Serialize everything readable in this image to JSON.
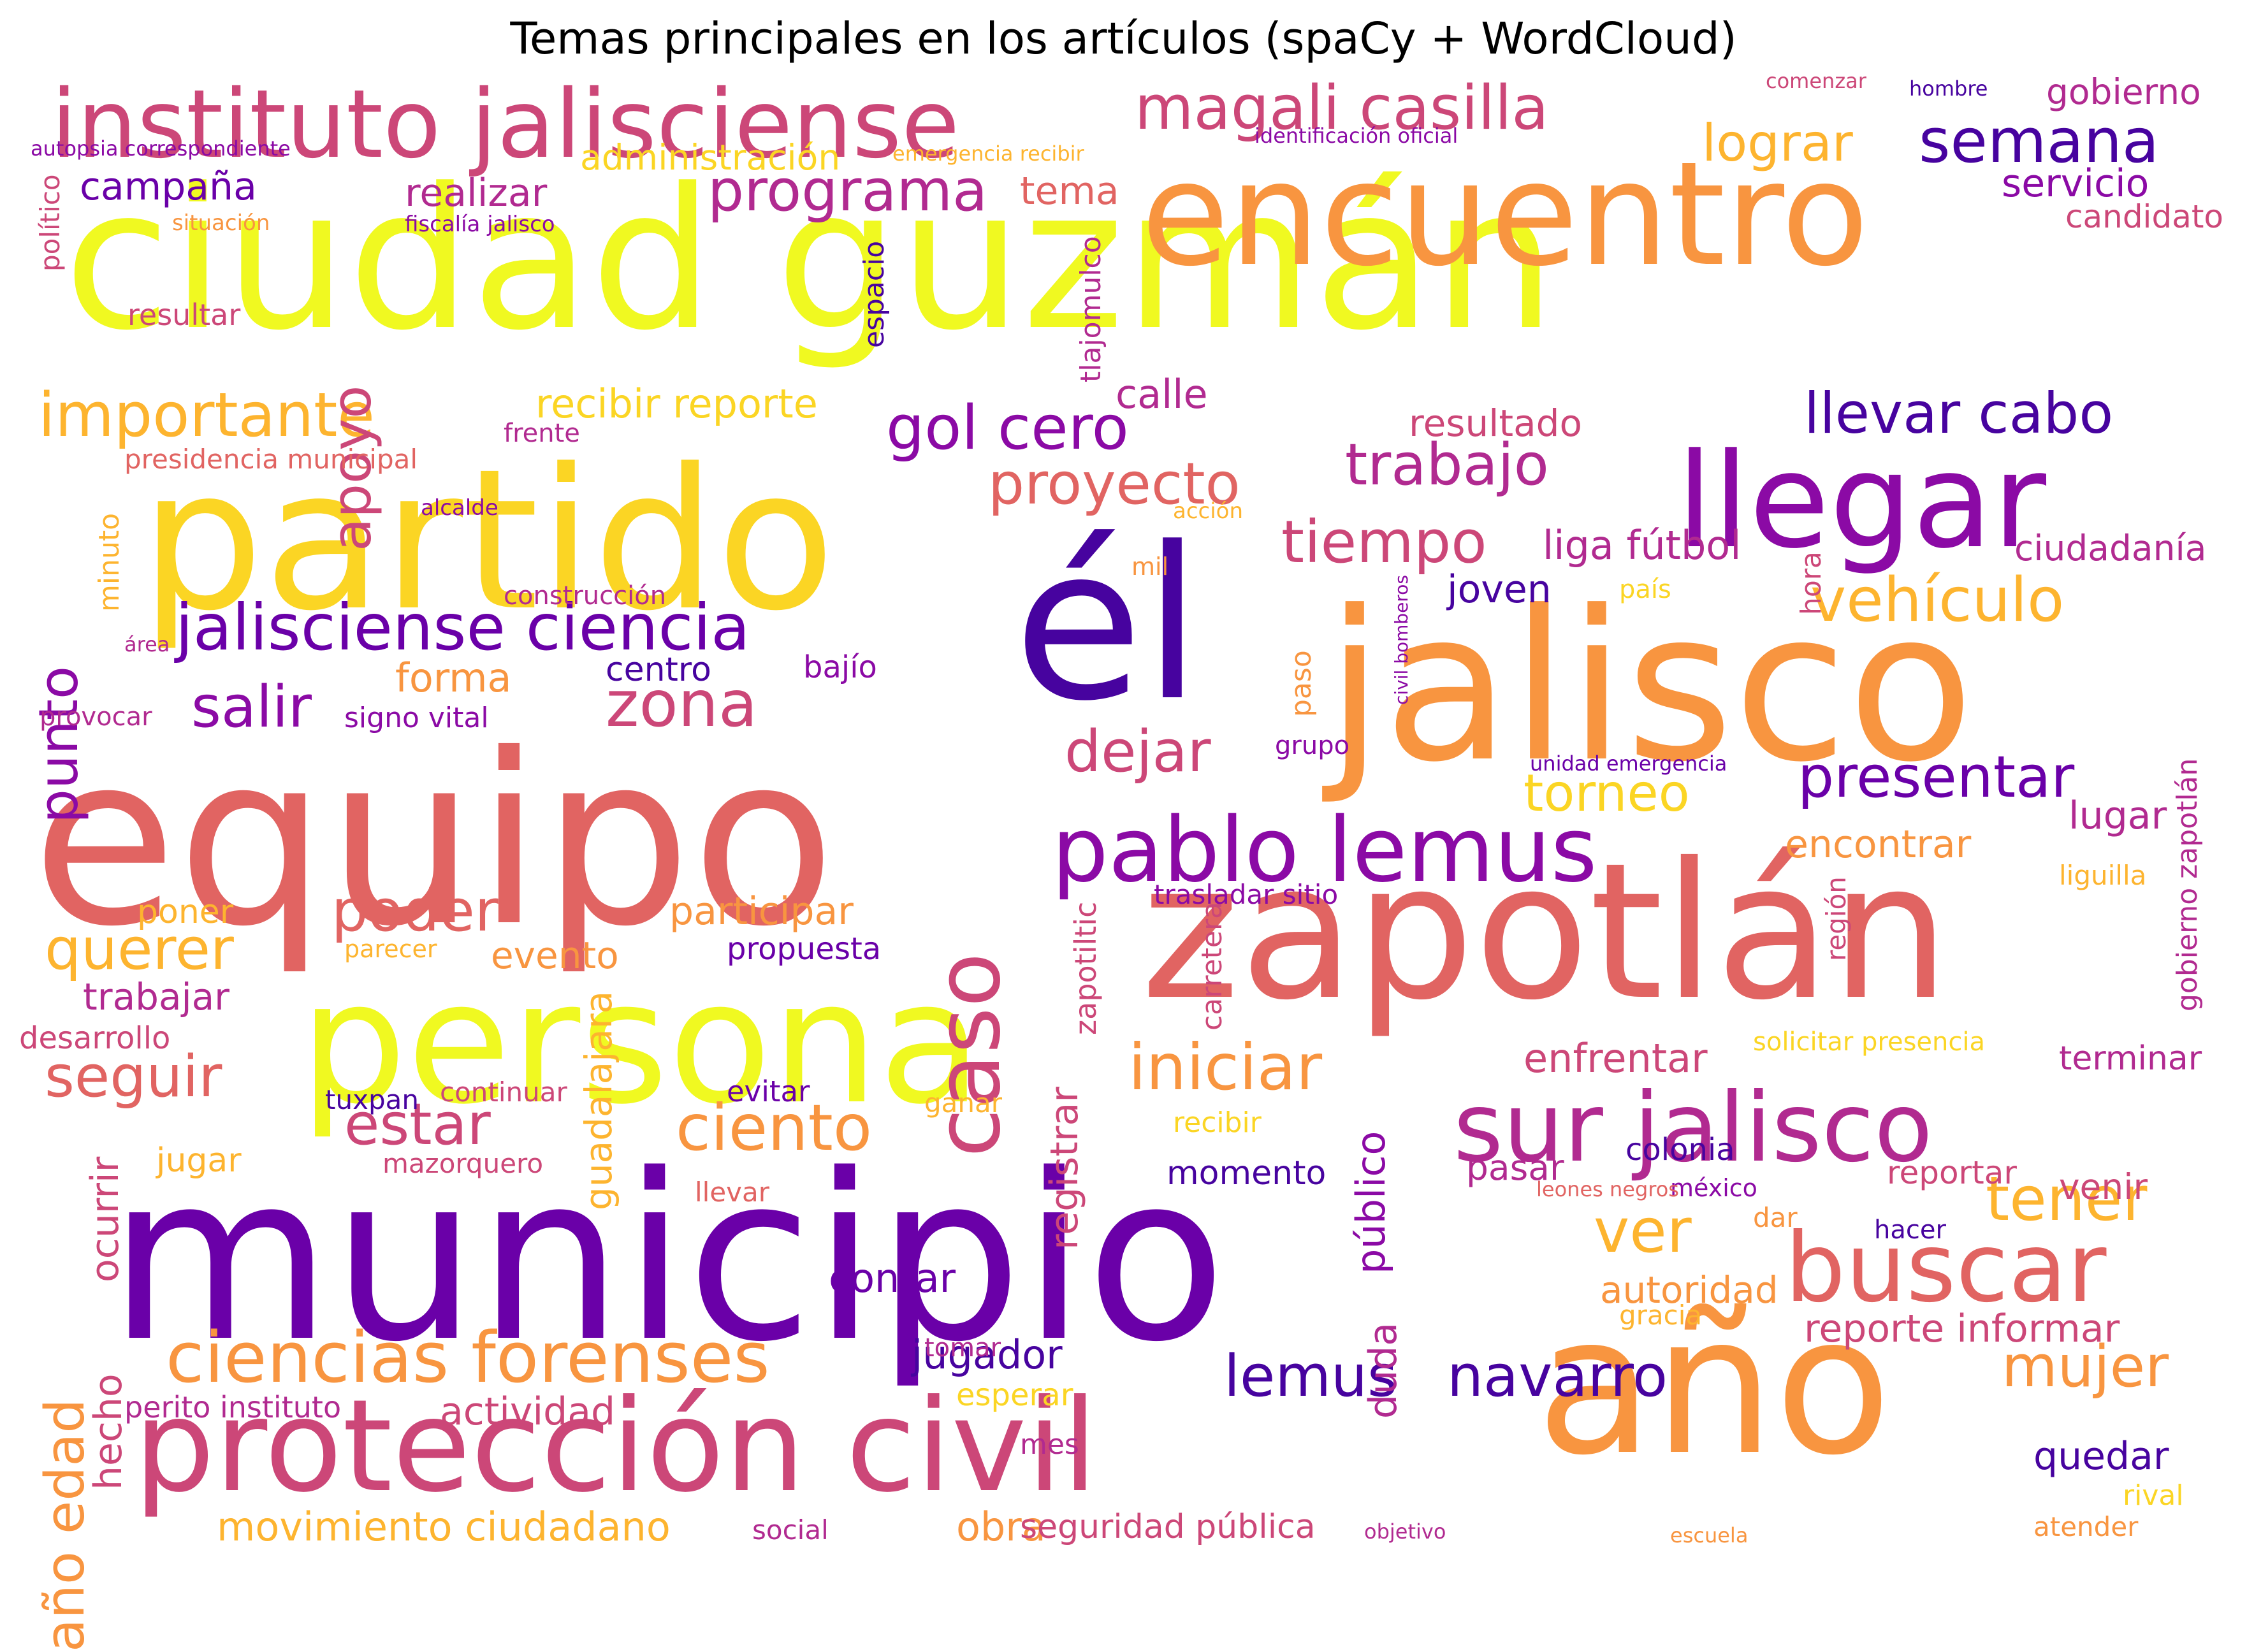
{
  "title": "Temas principales en los artículos (spaCy + WordCloud)",
  "colormap": "plasma",
  "palette": [
    "#f0f921",
    "#fbd524",
    "#fdb42f",
    "#f89540",
    "#e16462",
    "#cc4778",
    "#b12a90",
    "#8b0aa5",
    "#6a00a8",
    "#47039f",
    "#0d0887"
  ],
  "words": [
    {
      "text": "ciudad guzmán",
      "color": "#f0f921",
      "rot": 0
    },
    {
      "text": "municipio",
      "color": "#6a00a8",
      "rot": 0
    },
    {
      "text": "equipo",
      "color": "#e16462",
      "rot": 0
    },
    {
      "text": "zapotlán",
      "color": "#e16462",
      "rot": 0
    },
    {
      "text": "jalisco",
      "color": "#f89540",
      "rot": 0
    },
    {
      "text": "él",
      "color": "#47039f",
      "rot": 0
    },
    {
      "text": "partido",
      "color": "#fbd524",
      "rot": 0
    },
    {
      "text": "persona",
      "color": "#f0f921",
      "rot": 0
    },
    {
      "text": "año",
      "color": "#f89540",
      "rot": 0
    },
    {
      "text": "protección civil",
      "color": "#cc4778",
      "rot": 0
    },
    {
      "text": "encuentro",
      "color": "#f89540",
      "rot": 0
    },
    {
      "text": "llegar",
      "color": "#8b0aa5",
      "rot": 0
    },
    {
      "text": "sur jalisco",
      "color": "#b12a90",
      "rot": 0
    },
    {
      "text": "buscar",
      "color": "#e16462",
      "rot": 0
    },
    {
      "text": "instituto jalisciense",
      "color": "#cc4778",
      "rot": 0
    },
    {
      "text": "pablo lemus",
      "color": "#8b0aa5",
      "rot": 0
    },
    {
      "text": "caso",
      "color": "#cc4778",
      "rot": -90
    },
    {
      "text": "jalisciense ciencia",
      "color": "#6a00a8",
      "rot": 0
    },
    {
      "text": "ciencias forenses",
      "color": "#f89540",
      "rot": 0
    },
    {
      "text": "magali casilla",
      "color": "#cc4778",
      "rot": 0
    },
    {
      "text": "importante",
      "color": "#fdb42f",
      "rot": 0
    },
    {
      "text": "programa",
      "color": "#b12a90",
      "rot": 0
    },
    {
      "text": "semana",
      "color": "#47039f",
      "rot": 0
    },
    {
      "text": "gol cero",
      "color": "#8b0aa5",
      "rot": 0
    },
    {
      "text": "llevar cabo",
      "color": "#47039f",
      "rot": 0
    },
    {
      "text": "trabajo",
      "color": "#b12a90",
      "rot": 0
    },
    {
      "text": "proyecto",
      "color": "#e16462",
      "rot": 0
    },
    {
      "text": "tiempo",
      "color": "#cc4778",
      "rot": 0
    },
    {
      "text": "vehículo",
      "color": "#fdb42f",
      "rot": 0
    },
    {
      "text": "presentar",
      "color": "#6a00a8",
      "rot": 0
    },
    {
      "text": "iniciar",
      "color": "#f89540",
      "rot": 0
    },
    {
      "text": "ciento",
      "color": "#f89540",
      "rot": 0
    },
    {
      "text": "zona",
      "color": "#cc4778",
      "rot": 0
    },
    {
      "text": "dejar",
      "color": "#cc4778",
      "rot": 0
    },
    {
      "text": "poder",
      "color": "#e16462",
      "rot": 0
    },
    {
      "text": "querer",
      "color": "#fdb42f",
      "rot": 0
    },
    {
      "text": "seguir",
      "color": "#e16462",
      "rot": 0
    },
    {
      "text": "estar",
      "color": "#cc4778",
      "rot": 0
    },
    {
      "text": "salir",
      "color": "#8b0aa5",
      "rot": 0
    },
    {
      "text": "tener",
      "color": "#fdb42f",
      "rot": 0
    },
    {
      "text": "mujer",
      "color": "#f89540",
      "rot": 0
    },
    {
      "text": "navarro",
      "color": "#47039f",
      "rot": 0
    },
    {
      "text": "lemus",
      "color": "#47039f",
      "rot": 0
    },
    {
      "text": "torneo",
      "color": "#fbd524",
      "rot": 0
    },
    {
      "text": "ver",
      "color": "#fdb42f",
      "rot": 0
    },
    {
      "text": "apoyo",
      "color": "#cc4778",
      "rot": -90
    },
    {
      "text": "punto",
      "color": "#8b0aa5",
      "rot": -90
    },
    {
      "text": "año edad",
      "color": "#f89540",
      "rot": -90
    },
    {
      "text": "lograr",
      "color": "#fdb42f",
      "rot": 0
    },
    {
      "text": "campaña",
      "color": "#6a00a8",
      "rot": 0
    },
    {
      "text": "realizar",
      "color": "#b12a90",
      "rot": 0
    },
    {
      "text": "tema",
      "color": "#e16462",
      "rot": 0
    },
    {
      "text": "servicio",
      "color": "#8b0aa5",
      "rot": 0
    },
    {
      "text": "gobierno",
      "color": "#b12a90",
      "rot": 0
    },
    {
      "text": "candidato",
      "color": "#cc4778",
      "rot": 0
    },
    {
      "text": "administración",
      "color": "#fbd524",
      "rot": 0
    },
    {
      "text": "recibir reporte",
      "color": "#fbd524",
      "rot": 0
    },
    {
      "text": "calle",
      "color": "#b12a90",
      "rot": 0
    },
    {
      "text": "resultado",
      "color": "#cc4778",
      "rot": 0
    },
    {
      "text": "liga fútbol",
      "color": "#b12a90",
      "rot": 0
    },
    {
      "text": "joven",
      "color": "#47039f",
      "rot": 0
    },
    {
      "text": "ciudadanía",
      "color": "#b12a90",
      "rot": 0
    },
    {
      "text": "forma",
      "color": "#f89540",
      "rot": 0
    },
    {
      "text": "centro",
      "color": "#47039f",
      "rot": 0
    },
    {
      "text": "bajío",
      "color": "#8b0aa5",
      "rot": 0
    },
    {
      "text": "encontrar",
      "color": "#f89540",
      "rot": 0
    },
    {
      "text": "lugar",
      "color": "#b12a90",
      "rot": 0
    },
    {
      "text": "participar",
      "color": "#f89540",
      "rot": 0
    },
    {
      "text": "evento",
      "color": "#f89540",
      "rot": 0
    },
    {
      "text": "propuesta",
      "color": "#6a00a8",
      "rot": 0
    },
    {
      "text": "poner",
      "color": "#fdb42f",
      "rot": 0
    },
    {
      "text": "trabajar",
      "color": "#b12a90",
      "rot": 0
    },
    {
      "text": "desarrollo",
      "color": "#cc4778",
      "rot": 0
    },
    {
      "text": "enfrentar",
      "color": "#cc4778",
      "rot": 0
    },
    {
      "text": "terminar",
      "color": "#b12a90",
      "rot": 0
    },
    {
      "text": "contar",
      "color": "#6a00a8",
      "rot": 0
    },
    {
      "text": "jugador",
      "color": "#47039f",
      "rot": 0
    },
    {
      "text": "actividad",
      "color": "#cc4778",
      "rot": 0
    },
    {
      "text": "movimiento ciudadano",
      "color": "#fdb42f",
      "rot": 0
    },
    {
      "text": "obra",
      "color": "#f89540",
      "rot": 0
    },
    {
      "text": "seguridad pública",
      "color": "#cc4778",
      "rot": 0
    },
    {
      "text": "autoridad",
      "color": "#f89540",
      "rot": 0
    },
    {
      "text": "reporte informar",
      "color": "#cc4778",
      "rot": 0
    },
    {
      "text": "quedar",
      "color": "#47039f",
      "rot": 0
    },
    {
      "text": "venir",
      "color": "#cc4778",
      "rot": 0
    },
    {
      "text": "reportar",
      "color": "#cc4778",
      "rot": 0
    },
    {
      "text": "colonia",
      "color": "#47039f",
      "rot": 0
    },
    {
      "text": "momento",
      "color": "#47039f",
      "rot": 0
    },
    {
      "text": "pasar",
      "color": "#b12a90",
      "rot": 0
    },
    {
      "text": "jugar",
      "color": "#fdb42f",
      "rot": 0
    },
    {
      "text": "mazorquero",
      "color": "#cc4778",
      "rot": 0
    },
    {
      "text": "tuxpan",
      "color": "#47039f",
      "rot": 0
    },
    {
      "text": "continuar",
      "color": "#cc4778",
      "rot": 0
    },
    {
      "text": "evitar",
      "color": "#6a00a8",
      "rot": 0
    },
    {
      "text": "ganar",
      "color": "#fdb42f",
      "rot": 0
    },
    {
      "text": "recibir",
      "color": "#fbd524",
      "rot": 0
    },
    {
      "text": "llevar",
      "color": "#e16462",
      "rot": 0
    },
    {
      "text": "dar",
      "color": "#f89540",
      "rot": 0
    },
    {
      "text": "méxico",
      "color": "#8b0aa5",
      "rot": 0
    },
    {
      "text": "hacer",
      "color": "#47039f",
      "rot": 0
    },
    {
      "text": "leones negros",
      "color": "#e16462",
      "rot": 0
    },
    {
      "text": "gracia",
      "color": "#fdb42f",
      "rot": 0
    },
    {
      "text": "tomar",
      "color": "#b12a90",
      "rot": 0
    },
    {
      "text": "esperar",
      "color": "#fbd524",
      "rot": 0
    },
    {
      "text": "perito instituto",
      "color": "#b12a90",
      "rot": 0
    },
    {
      "text": "mes",
      "color": "#b12a90",
      "rot": 0
    },
    {
      "text": "social",
      "color": "#b12a90",
      "rot": 0
    },
    {
      "text": "objetivo",
      "color": "#b12a90",
      "rot": 0
    },
    {
      "text": "escuela",
      "color": "#f89540",
      "rot": 0
    },
    {
      "text": "atender",
      "color": "#f89540",
      "rot": 0
    },
    {
      "text": "rival",
      "color": "#fbd524",
      "rot": 0
    },
    {
      "text": "parecer",
      "color": "#fdb42f",
      "rot": 0
    },
    {
      "text": "trasladar sitio",
      "color": "#8b0aa5",
      "rot": 0
    },
    {
      "text": "liguilla",
      "color": "#fdb42f",
      "rot": 0
    },
    {
      "text": "solicitar presencia",
      "color": "#fbd524",
      "rot": 0
    },
    {
      "text": "unidad emergencia",
      "color": "#6a00a8",
      "rot": 0
    },
    {
      "text": "signo vital",
      "color": "#8b0aa5",
      "rot": 0
    },
    {
      "text": "provocar",
      "color": "#b12a90",
      "rot": 0
    },
    {
      "text": "grupo",
      "color": "#8b0aa5",
      "rot": 0
    },
    {
      "text": "país",
      "color": "#fbd524",
      "rot": 0
    },
    {
      "text": "mil",
      "color": "#f89540",
      "rot": 0
    },
    {
      "text": "construcción",
      "color": "#b12a90",
      "rot": 0
    },
    {
      "text": "área",
      "color": "#b12a90",
      "rot": 0
    },
    {
      "text": "acción",
      "color": "#fdb42f",
      "rot": 0
    },
    {
      "text": "alcalde",
      "color": "#8b0aa5",
      "rot": 0
    },
    {
      "text": "presidencia municipal",
      "color": "#e16462",
      "rot": 0
    },
    {
      "text": "frente",
      "color": "#b12a90",
      "rot": 0
    },
    {
      "text": "resultar",
      "color": "#cc4778",
      "rot": 0
    },
    {
      "text": "situación",
      "color": "#f89540",
      "rot": 0
    },
    {
      "text": "fiscalía jalisco",
      "color": "#8b0aa5",
      "rot": 0
    },
    {
      "text": "emergencia recibir",
      "color": "#fdb42f",
      "rot": 0
    },
    {
      "text": "identificación oficial",
      "color": "#8b0aa5",
      "rot": 0
    },
    {
      "text": "comenzar",
      "color": "#cc4778",
      "rot": 0
    },
    {
      "text": "hombre",
      "color": "#47039f",
      "rot": 0
    },
    {
      "text": "autopsia correspondiente",
      "color": "#8b0aa5",
      "rot": 0
    },
    {
      "text": "político",
      "color": "#cc4778",
      "rot": -90
    },
    {
      "text": "espacio",
      "color": "#47039f",
      "rot": -90
    },
    {
      "text": "tlajomulco",
      "color": "#b12a90",
      "rot": -90
    },
    {
      "text": "minuto",
      "color": "#fdb42f",
      "rot": -90
    },
    {
      "text": "hora",
      "color": "#cc4778",
      "rot": -90
    },
    {
      "text": "civil bomberos",
      "color": "#8b0aa5",
      "rot": -90
    },
    {
      "text": "paso",
      "color": "#f89540",
      "rot": -90
    },
    {
      "text": "gobierno zapotlán",
      "color": "#b12a90",
      "rot": -90
    },
    {
      "text": "región",
      "color": "#cc4778",
      "rot": -90
    },
    {
      "text": "zapotiltic",
      "color": "#cc4778",
      "rot": -90
    },
    {
      "text": "carretera",
      "color": "#cc4778",
      "rot": -90
    },
    {
      "text": "guadalajara",
      "color": "#fdb42f",
      "rot": -90
    },
    {
      "text": "registrar",
      "color": "#cc4778",
      "rot": -90
    },
    {
      "text": "público",
      "color": "#8b0aa5",
      "rot": -90
    },
    {
      "text": "duda",
      "color": "#b12a90",
      "rot": -90
    },
    {
      "text": "ocurrir",
      "color": "#cc4778",
      "rot": -90
    },
    {
      "text": "hecho",
      "color": "#cc4778",
      "rot": -90
    }
  ]
}
